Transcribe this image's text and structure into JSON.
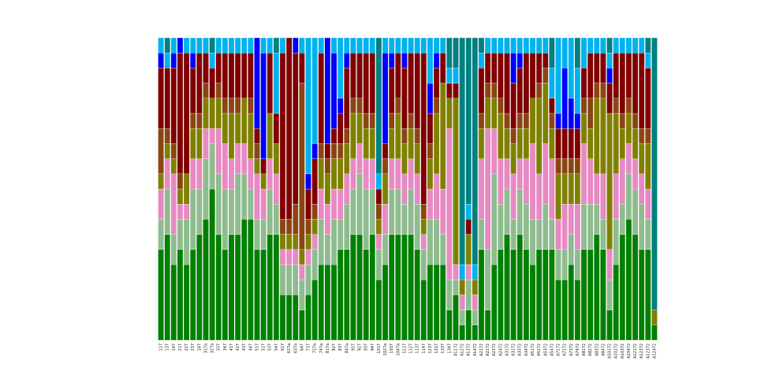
{
  "chart_data": {
    "type": "bar",
    "stacked": true,
    "categories": [
      "117",
      "137",
      "147",
      "217",
      "227",
      "237",
      "247",
      "317a",
      "327a",
      "337",
      "347",
      "417",
      "427",
      "437",
      "447",
      "517",
      "527",
      "537",
      "547",
      "617",
      "627a",
      "637a",
      "647",
      "717",
      "727a",
      "747a",
      "817a",
      "827",
      "837",
      "847a",
      "917",
      "927",
      "937",
      "947",
      "1017",
      "1027a",
      "1037",
      "1047a",
      "1117",
      "1127",
      "1137",
      "1147",
      "1237",
      "1327",
      "1337",
      "1347",
      "A1172",
      "A1272",
      "A1372",
      "A1472",
      "A2172",
      "A2272",
      "A2372",
      "A2472",
      "A3172",
      "A3272",
      "A3372",
      "A3472",
      "A5172",
      "A5272",
      "A5372",
      "A5472",
      "A7172",
      "A7272",
      "A7372",
      "A7472",
      "A8172",
      "A8272",
      "A8372",
      "A8472",
      "A10172",
      "A10272",
      "A10372",
      "A10472",
      "A12172",
      "A12272",
      "A12372",
      "A12472"
    ],
    "ylim": [
      0,
      100
    ],
    "series": [
      {
        "color": "#008000",
        "values": [
          30,
          35,
          25,
          30,
          25,
          30,
          35,
          40,
          50,
          35,
          30,
          35,
          35,
          40,
          40,
          30,
          30,
          35,
          35,
          15,
          15,
          15,
          10,
          15,
          20,
          25,
          25,
          25,
          30,
          30,
          35,
          35,
          30,
          35,
          20,
          25,
          35,
          35,
          35,
          35,
          30,
          20,
          25,
          25,
          25,
          10,
          15,
          5,
          10,
          5,
          30,
          10,
          25,
          30,
          35,
          30,
          35,
          30,
          25,
          30,
          30,
          30,
          20,
          20,
          25,
          20,
          30,
          30,
          35,
          30,
          10,
          25,
          35,
          40,
          35,
          30,
          30,
          5
        ]
      },
      {
        "color": "#8fbc8f",
        "values": [
          10,
          15,
          10,
          10,
          15,
          20,
          15,
          20,
          15,
          20,
          20,
          15,
          20,
          15,
          10,
          10,
          10,
          15,
          10,
          10,
          10,
          10,
          10,
          10,
          10,
          15,
          10,
          15,
          10,
          15,
          15,
          20,
          20,
          15,
          10,
          10,
          15,
          15,
          10,
          15,
          15,
          10,
          15,
          15,
          10,
          10,
          5,
          5,
          10,
          5,
          10,
          20,
          30,
          15,
          15,
          10,
          15,
          15,
          15,
          10,
          15,
          10,
          10,
          10,
          10,
          10,
          15,
          15,
          10,
          10,
          10,
          15,
          10,
          15,
          15,
          15,
          10,
          0
        ]
      },
      {
        "color": "#e78ac3",
        "values": [
          10,
          10,
          20,
          5,
          5,
          10,
          10,
          10,
          5,
          15,
          15,
          10,
          10,
          10,
          10,
          15,
          10,
          10,
          10,
          5,
          5,
          5,
          5,
          5,
          5,
          10,
          10,
          10,
          10,
          10,
          10,
          10,
          10,
          10,
          5,
          10,
          10,
          10,
          10,
          10,
          10,
          5,
          10,
          15,
          15,
          50,
          5,
          5,
          5,
          5,
          20,
          40,
          15,
          15,
          10,
          15,
          10,
          15,
          25,
          15,
          20,
          20,
          10,
          15,
          10,
          15,
          20,
          15,
          10,
          15,
          10,
          15,
          15,
          10,
          10,
          10,
          10,
          0
        ]
      },
      {
        "color": "#808000",
        "values": [
          5,
          5,
          5,
          5,
          10,
          10,
          10,
          10,
          10,
          10,
          10,
          15,
          10,
          15,
          15,
          5,
          5,
          15,
          10,
          5,
          5,
          5,
          5,
          5,
          5,
          10,
          10,
          10,
          10,
          10,
          15,
          10,
          10,
          10,
          5,
          10,
          10,
          15,
          10,
          10,
          10,
          5,
          10,
          20,
          35,
          10,
          55,
          5,
          10,
          5,
          10,
          10,
          10,
          15,
          10,
          10,
          10,
          10,
          15,
          25,
          20,
          10,
          15,
          10,
          10,
          10,
          10,
          10,
          25,
          25,
          45,
          20,
          10,
          10,
          10,
          10,
          15,
          5
        ]
      },
      {
        "color": "#8b4513",
        "values": [
          15,
          5,
          5,
          5,
          0,
          5,
          5,
          5,
          0,
          5,
          5,
          5,
          5,
          0,
          5,
          5,
          0,
          0,
          0,
          5,
          5,
          10,
          55,
          5,
          5,
          5,
          5,
          5,
          5,
          5,
          5,
          5,
          5,
          5,
          5,
          5,
          5,
          5,
          5,
          5,
          5,
          5,
          5,
          5,
          0,
          0,
          0,
          0,
          0,
          0,
          5,
          5,
          5,
          5,
          5,
          5,
          5,
          5,
          0,
          5,
          5,
          5,
          5,
          5,
          5,
          5,
          5,
          10,
          5,
          5,
          0,
          5,
          5,
          5,
          5,
          5,
          5,
          0
        ]
      },
      {
        "color": "#800000",
        "values": [
          20,
          20,
          25,
          40,
          40,
          15,
          20,
          10,
          10,
          10,
          15,
          15,
          15,
          15,
          15,
          5,
          5,
          20,
          10,
          55,
          60,
          50,
          10,
          10,
          15,
          30,
          5,
          5,
          10,
          20,
          15,
          15,
          20,
          20,
          5,
          5,
          15,
          15,
          20,
          20,
          25,
          50,
          10,
          10,
          10,
          5,
          5,
          0,
          5,
          0,
          15,
          10,
          10,
          15,
          20,
          15,
          15,
          20,
          15,
          10,
          5,
          5,
          10,
          10,
          10,
          10,
          10,
          15,
          10,
          10,
          10,
          15,
          20,
          15,
          20,
          25,
          20,
          0
        ]
      },
      {
        "color": "#0000ff",
        "values": [
          5,
          0,
          5,
          5,
          0,
          5,
          0,
          0,
          0,
          0,
          0,
          0,
          0,
          0,
          0,
          30,
          35,
          0,
          0,
          0,
          0,
          5,
          0,
          5,
          5,
          0,
          35,
          25,
          5,
          5,
          0,
          0,
          0,
          0,
          0,
          30,
          5,
          0,
          5,
          0,
          0,
          0,
          10,
          5,
          0,
          0,
          0,
          0,
          0,
          0,
          0,
          0,
          0,
          0,
          0,
          10,
          5,
          0,
          0,
          0,
          0,
          0,
          5,
          20,
          10,
          5,
          0,
          0,
          0,
          0,
          5,
          0,
          0,
          0,
          0,
          0,
          0,
          0
        ]
      },
      {
        "color": "#00b2ee",
        "values": [
          5,
          5,
          5,
          0,
          5,
          5,
          5,
          5,
          5,
          5,
          5,
          5,
          5,
          5,
          5,
          0,
          5,
          5,
          20,
          5,
          0,
          0,
          5,
          45,
          35,
          5,
          0,
          5,
          20,
          5,
          5,
          5,
          5,
          5,
          5,
          5,
          5,
          5,
          5,
          5,
          5,
          5,
          15,
          5,
          5,
          5,
          5,
          5,
          5,
          5,
          5,
          5,
          5,
          5,
          5,
          5,
          5,
          5,
          5,
          5,
          5,
          10,
          25,
          10,
          20,
          15,
          10,
          5,
          5,
          5,
          5,
          5,
          5,
          5,
          5,
          5,
          5,
          0
        ]
      },
      {
        "color": "#008080",
        "values": [
          0,
          5,
          0,
          0,
          0,
          0,
          0,
          0,
          5,
          0,
          0,
          0,
          0,
          0,
          0,
          0,
          0,
          0,
          5,
          0,
          0,
          0,
          0,
          0,
          0,
          0,
          0,
          0,
          0,
          0,
          0,
          0,
          0,
          0,
          45,
          0,
          0,
          0,
          0,
          0,
          0,
          0,
          0,
          0,
          0,
          10,
          10,
          75,
          55,
          75,
          5,
          0,
          0,
          0,
          0,
          0,
          0,
          0,
          0,
          0,
          0,
          10,
          0,
          0,
          0,
          10,
          0,
          0,
          0,
          0,
          5,
          0,
          0,
          0,
          0,
          0,
          5,
          90
        ]
      }
    ]
  }
}
